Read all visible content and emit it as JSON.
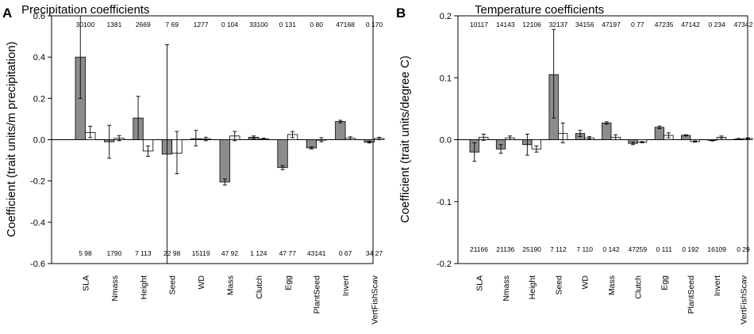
{
  "chart_data": [
    {
      "panel_letter": "A",
      "type": "bar",
      "title": "Precipitation coefficients",
      "ylabel": "Coefficient (trait units/m precipitation)",
      "xlabel": "",
      "ylim": [
        -0.6,
        0.6
      ],
      "yticks": [
        "-0.6",
        "-0.4",
        "-0.2",
        "0.0",
        "0.2",
        "0.4",
        "0.6"
      ],
      "categories": [
        "SLA",
        "Nmass",
        "Height",
        "Seed",
        "WD",
        "Mass",
        "Clutch",
        "Egg",
        "PlantSeed",
        "Invert",
        "VertFishScav"
      ],
      "series": [
        {
          "name": "grey",
          "color": "#8c8c8c",
          "values": [
            0.4,
            -0.01,
            0.105,
            -0.07,
            0.005,
            -0.205,
            0.012,
            -0.135,
            -0.04,
            0.088,
            -0.012
          ],
          "err_low": [
            0.2,
            -0.09,
            0.0,
            -0.6,
            -0.03,
            -0.22,
            0.005,
            -0.145,
            -0.045,
            0.082,
            -0.016
          ],
          "err_high": [
            0.6,
            0.07,
            0.21,
            0.46,
            0.045,
            -0.19,
            0.018,
            -0.125,
            -0.035,
            0.094,
            -0.008
          ]
        },
        {
          "name": "white",
          "color": "#ffffff",
          "values": [
            0.035,
            0.007,
            -0.055,
            -0.065,
            0.003,
            0.018,
            0.004,
            0.025,
            0.0,
            0.007,
            0.006
          ],
          "err_low": [
            0.01,
            -0.005,
            -0.08,
            -0.165,
            -0.005,
            -0.005,
            0.0,
            0.01,
            -0.01,
            0.0,
            0.0
          ],
          "err_high": [
            0.065,
            0.02,
            -0.03,
            0.04,
            0.012,
            0.04,
            0.008,
            0.04,
            0.01,
            0.014,
            0.012
          ]
        }
      ],
      "top_labels": [
        "30100",
        "1381",
        "2669",
        "7 69",
        "1277",
        "0 104",
        "33100",
        "0 131",
        "0 80",
        "47168",
        "0 170"
      ],
      "bottom_labels": [
        "5 98",
        "1790",
        "7 113",
        "22 98",
        "15119",
        "47 92",
        "1 124",
        "47 77",
        "43141",
        "0 67",
        "34 27"
      ]
    },
    {
      "panel_letter": "B",
      "type": "bar",
      "title": "Temperature coefficients",
      "ylabel": "Coefficient (trait units/degree C)",
      "xlabel": "",
      "ylim": [
        -0.2,
        0.2
      ],
      "yticks": [
        "-0.2",
        "-0.1",
        "0.0",
        "0.1",
        "0.2"
      ],
      "categories": [
        "SLA",
        "Nmass",
        "Height",
        "Seed",
        "WD",
        "Mass",
        "Clutch",
        "Egg",
        "PlantSeed",
        "Invert",
        "VertFishScav"
      ],
      "series": [
        {
          "name": "grey",
          "color": "#8c8c8c",
          "values": [
            -0.02,
            -0.015,
            -0.008,
            0.105,
            0.01,
            0.027,
            -0.006,
            0.02,
            0.007,
            -0.001,
            0.001
          ],
          "err_low": [
            -0.035,
            -0.022,
            -0.025,
            0.035,
            0.005,
            0.025,
            -0.008,
            0.018,
            0.006,
            -0.002,
            0.0
          ],
          "err_high": [
            -0.005,
            -0.008,
            0.009,
            0.178,
            0.015,
            0.029,
            -0.004,
            0.022,
            0.008,
            0.0,
            0.002
          ]
        },
        {
          "name": "white",
          "color": "#ffffff",
          "values": [
            0.004,
            0.003,
            -0.015,
            0.01,
            0.003,
            0.004,
            -0.004,
            0.007,
            -0.003,
            0.004,
            0.002
          ],
          "err_low": [
            -0.001,
            0.0,
            -0.02,
            -0.005,
            0.001,
            0.0,
            -0.005,
            0.003,
            -0.004,
            0.002,
            0.001
          ],
          "err_high": [
            0.009,
            0.006,
            -0.01,
            0.027,
            0.005,
            0.008,
            -0.003,
            0.011,
            -0.002,
            0.006,
            0.003
          ]
        }
      ],
      "top_labels": [
        "10117",
        "14143",
        "12106",
        "32137",
        "34156",
        "47197",
        "0 77",
        "47235",
        "47142",
        "0 234",
        "47342"
      ],
      "bottom_labels": [
        "21166",
        "21136",
        "25190",
        "7 112",
        "7 110",
        "0 142",
        "47259",
        "0 111",
        "0 192",
        "16109",
        "0 29"
      ]
    }
  ]
}
